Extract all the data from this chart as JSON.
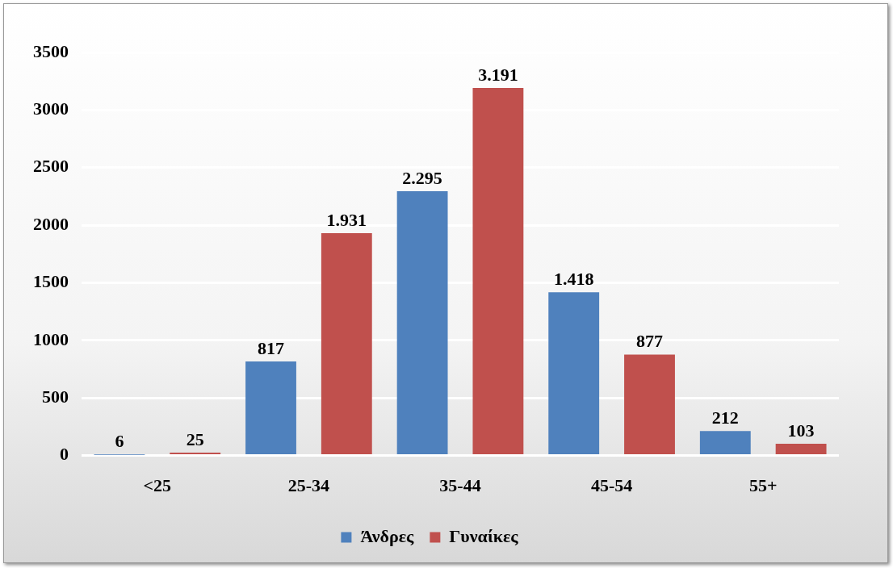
{
  "chart_data": {
    "type": "bar",
    "categories": [
      "<25",
      "25-34",
      "35-44",
      "45-54",
      "55+"
    ],
    "series": [
      {
        "name": "Άνδρες",
        "color": "#4f81bd",
        "values": [
          6,
          817,
          2295,
          1418,
          212
        ],
        "value_labels": [
          "6",
          "817",
          "2.295",
          "1.418",
          "212"
        ]
      },
      {
        "name": "Γυναίκες",
        "color": "#c0504d",
        "values": [
          25,
          1931,
          3191,
          877,
          103
        ],
        "value_labels": [
          "25",
          "1.931",
          "3.191",
          "877",
          "103"
        ]
      }
    ],
    "ylim": [
      0,
      3500
    ],
    "yticks": [
      0,
      500,
      1000,
      1500,
      2000,
      2500,
      3000,
      3500
    ],
    "grid": "y",
    "legend": "bottom"
  }
}
